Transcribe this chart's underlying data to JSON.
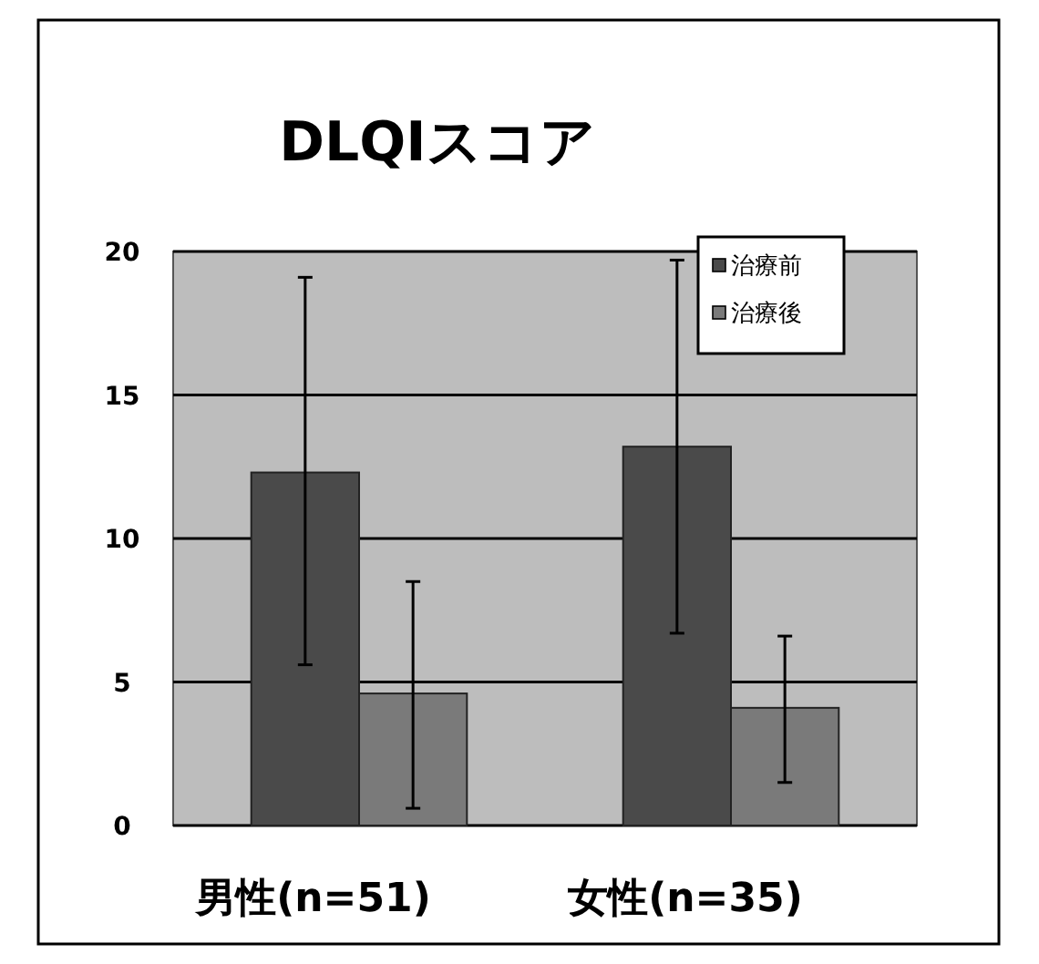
{
  "chart_data": {
    "type": "bar",
    "title": "DLQIスコア",
    "categories": [
      "男性(n=51)",
      "女性(n=35)"
    ],
    "series": [
      {
        "name": "治療前",
        "color": "#4a4a4a",
        "values": [
          12.3,
          13.2
        ],
        "errors": [
          [
            5.6,
            19.1
          ],
          [
            6.7,
            19.7
          ]
        ]
      },
      {
        "name": "治療後",
        "color": "#7a7a7a",
        "values": [
          4.6,
          4.1
        ],
        "errors": [
          [
            0.6,
            8.5
          ],
          [
            1.5,
            6.6
          ]
        ]
      }
    ],
    "ylim": [
      0,
      20
    ],
    "yticks": [
      0,
      5,
      10,
      15,
      20
    ],
    "grid": "y",
    "legend": "top right"
  }
}
